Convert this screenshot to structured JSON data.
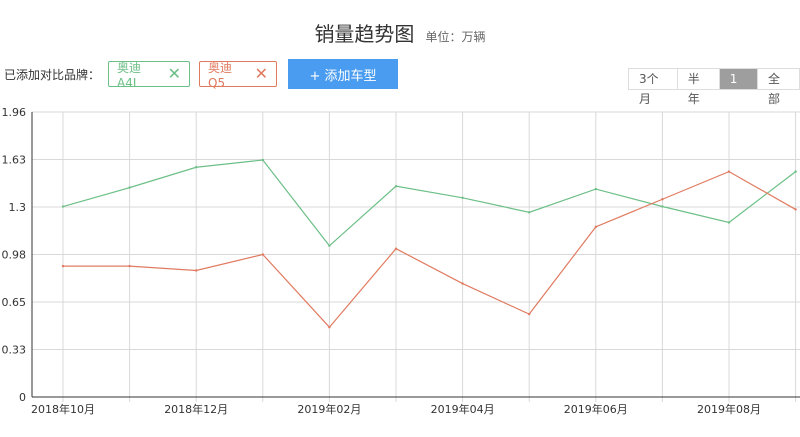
{
  "header": {
    "title": "销量趋势图",
    "unit": "单位：万辆"
  },
  "compare": {
    "label": "已添加对比品牌：",
    "brands": [
      {
        "name": "奥迪A4L",
        "color": "#6cbf86",
        "remove": "✕"
      },
      {
        "name": "奥迪Q5",
        "color": "#e07a5f",
        "remove": "✕"
      }
    ],
    "add_button": "+ 添加车型"
  },
  "range_tabs": [
    {
      "label": "3个月",
      "active": false
    },
    {
      "label": "半年",
      "active": false
    },
    {
      "label": "1年",
      "active": true
    },
    {
      "label": "全部",
      "active": false
    }
  ],
  "chart_data": {
    "type": "line",
    "x": [
      "2018-10",
      "2018-11",
      "2018-12",
      "2019-01",
      "2019-02",
      "2019-03",
      "2019-04",
      "2019-05",
      "2019-06",
      "2019-07",
      "2019-08",
      "2019-09"
    ],
    "x_tick_labels": [
      "2018年10月",
      "2018年12月",
      "2019年02月",
      "2019年04月",
      "2019年06月",
      "2019年08月"
    ],
    "y_ticks": [
      "0",
      "0.33",
      "0.65",
      "0.98",
      "1.3",
      "1.63",
      "1.96"
    ],
    "ylim": [
      0,
      1.96
    ],
    "grid": true,
    "series": [
      {
        "name": "奥迪A4L",
        "color": "#6cbf86",
        "values": [
          1.31,
          1.44,
          1.58,
          1.63,
          1.04,
          1.45,
          1.37,
          1.27,
          1.43,
          1.31,
          1.2,
          1.55
        ]
      },
      {
        "name": "奥迪Q5",
        "color": "#e07a5f",
        "values": [
          0.9,
          0.9,
          0.87,
          0.98,
          0.48,
          1.02,
          0.78,
          0.57,
          1.17,
          1.36,
          1.55,
          1.29
        ]
      }
    ]
  }
}
